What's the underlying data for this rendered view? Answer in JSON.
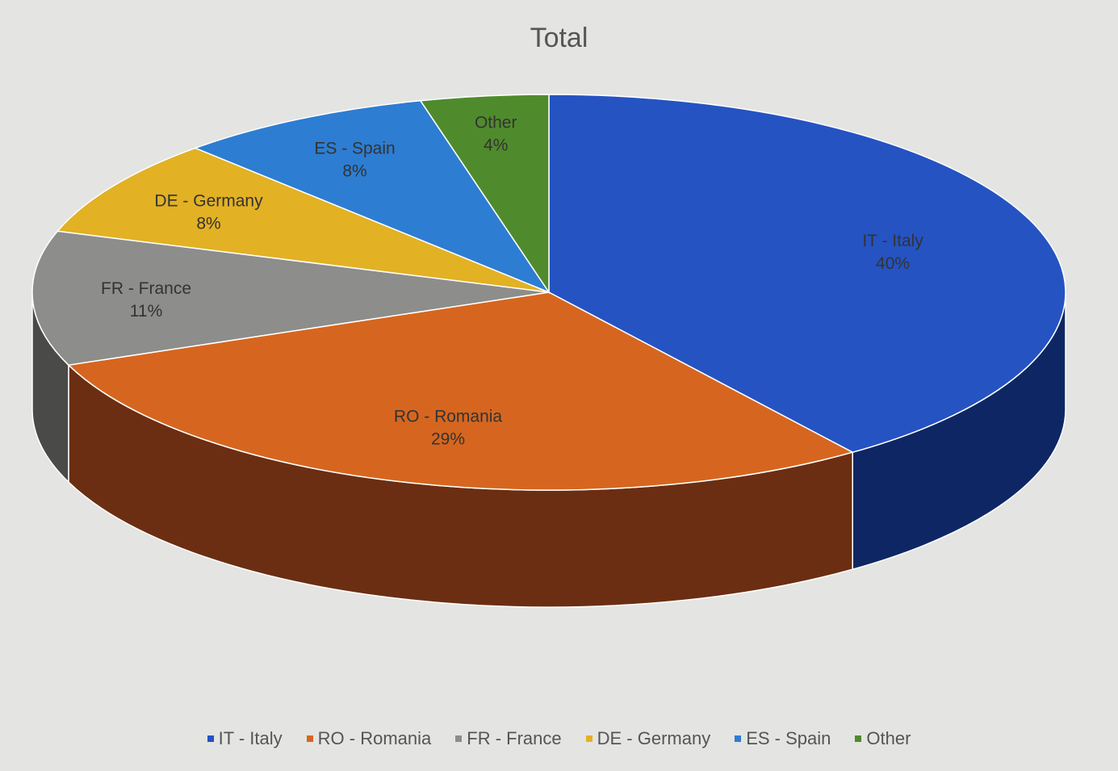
{
  "chart_data": {
    "type": "pie",
    "style": "3d",
    "title": "Total",
    "legend_position": "bottom",
    "slices": [
      {
        "label": "IT - Italy",
        "value": 40,
        "value_label": "40%",
        "color": "#2553c2",
        "side_color": "#0e2764"
      },
      {
        "label": "RO - Romania",
        "value": 29,
        "value_label": "29%",
        "color": "#d6661f",
        "side_color": "#6b2e12"
      },
      {
        "label": "FR - France",
        "value": 11,
        "value_label": "11%",
        "color": "#8d8d8b",
        "side_color": "#4a4a48"
      },
      {
        "label": "DE - Germany",
        "value": 8,
        "value_label": "8%",
        "color": "#e2b124",
        "side_color": "#7a5f10"
      },
      {
        "label": "ES - Spain",
        "value": 8,
        "value_label": "8%",
        "color": "#2d7dd2",
        "side_color": "#143c6a"
      },
      {
        "label": "Other",
        "value": 4,
        "value_label": "4%",
        "color": "#4f8b2c",
        "side_color": "#284a15"
      }
    ]
  }
}
